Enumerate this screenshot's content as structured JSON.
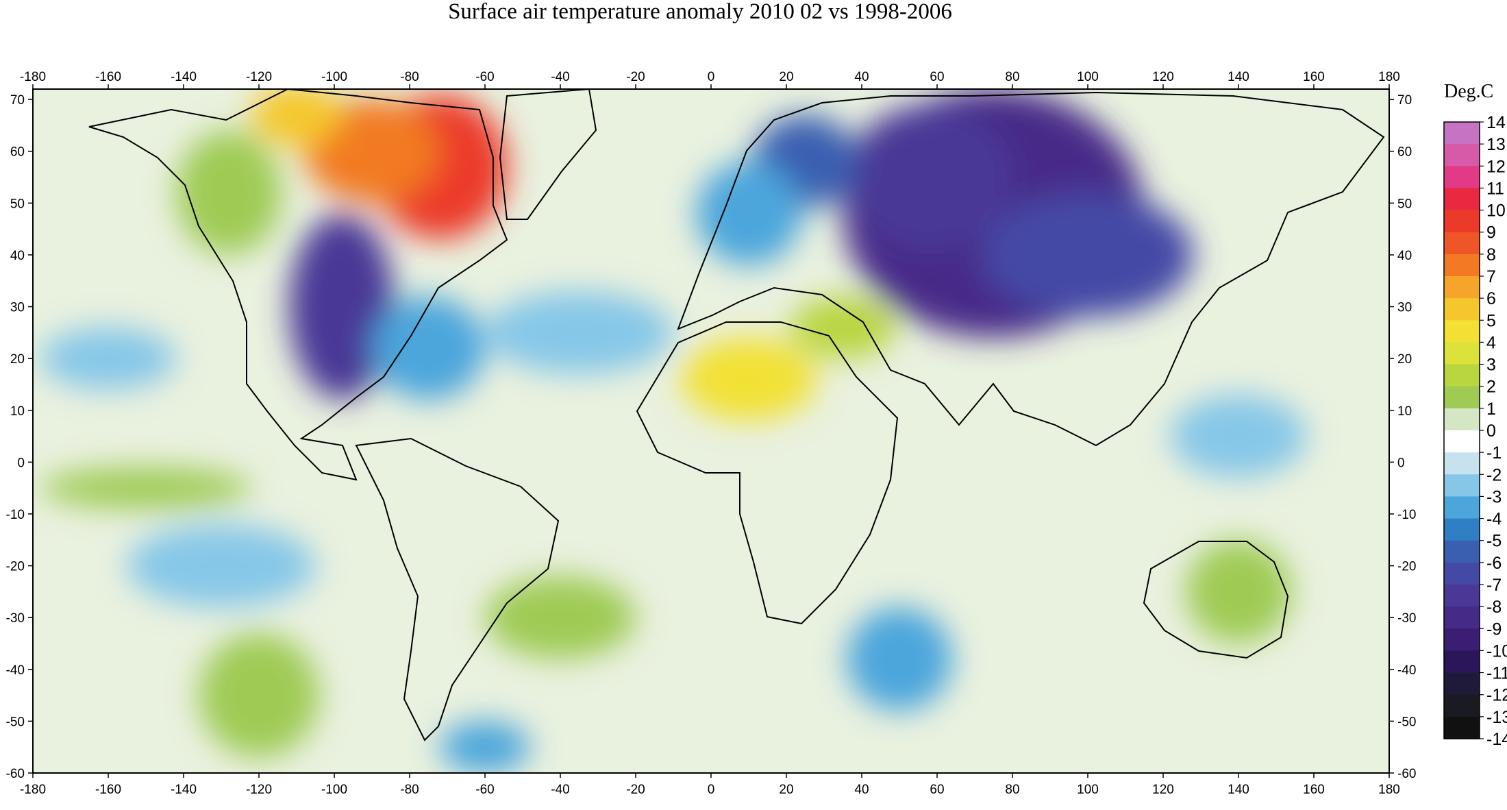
{
  "title": "Surface air temperature anomaly 2010 02 vs 1998-2006",
  "colorbar": {
    "title": "Deg.C",
    "labels": [
      "14",
      "13",
      "12",
      "11",
      "10",
      "9",
      "8",
      "7",
      "6",
      "5",
      "4",
      "3",
      "2",
      "1",
      "0",
      "-1",
      "-2",
      "-3",
      "-4",
      "-5",
      "-6",
      "-7",
      "-8",
      "-9",
      "-10",
      "-11",
      "-12",
      "-13",
      "-14"
    ],
    "colors": [
      "#c773c4",
      "#d65aa8",
      "#e23a86",
      "#e8293f",
      "#ec3a2a",
      "#ef5526",
      "#f27a24",
      "#f7a42a",
      "#f5c72c",
      "#f2e134",
      "#dde23a",
      "#b9d53f",
      "#9fcb55",
      "#d4e6c4",
      "#ffffff",
      "#c7e2ef",
      "#86c7e8",
      "#4ca6dc",
      "#2f7fc4",
      "#3a5fb1",
      "#4549a6",
      "#4a3796",
      "#462a88",
      "#3b1d73",
      "#2a1659",
      "#201a3a",
      "#1a1a22",
      "#111111"
    ]
  },
  "map": {
    "top_axis_labels": [
      "-180",
      "-160",
      "-140",
      "-120",
      "-100",
      "-80",
      "-60",
      "-40",
      "-20",
      "0",
      "20",
      "40",
      "60",
      "80",
      "100",
      "120",
      "140",
      "160",
      "180"
    ],
    "bottom_axis_labels": [
      "-180",
      "-160",
      "-140",
      "-120",
      "-100",
      "-80",
      "-60",
      "-40",
      "-20",
      "0",
      "20",
      "40",
      "60",
      "80",
      "100",
      "120",
      "140",
      "160",
      "180"
    ],
    "left_axis_labels": [
      "70",
      "60",
      "50",
      "40",
      "30",
      "20",
      "10",
      "0",
      "-10",
      "-20",
      "-30",
      "-40",
      "-50",
      "-60"
    ],
    "right_axis_labels": [
      "70",
      "60",
      "50",
      "40",
      "30",
      "20",
      "10",
      "0",
      "-10",
      "-20",
      "-30",
      "-40",
      "-50",
      "-60"
    ],
    "lon_range": [
      -180,
      180
    ],
    "lat_range": [
      -60,
      72
    ],
    "blobs": [
      {
        "lon": 85,
        "lat": 48,
        "rx": 28,
        "ry": 18,
        "color": "#3b1d73"
      },
      {
        "lon": 75,
        "lat": 48,
        "rx": 40,
        "ry": 24,
        "color": "#462a88"
      },
      {
        "lon": 58,
        "lat": 55,
        "rx": 22,
        "ry": 14,
        "color": "#4a3796"
      },
      {
        "lon": 100,
        "lat": 40,
        "rx": 28,
        "ry": 12,
        "color": "#4549a6"
      },
      {
        "lon": 25,
        "lat": 58,
        "rx": 14,
        "ry": 9,
        "color": "#3a5fb1"
      },
      {
        "lon": 10,
        "lat": 48,
        "rx": 14,
        "ry": 10,
        "color": "#4ca6dc"
      },
      {
        "lon": -98,
        "lat": 30,
        "rx": 14,
        "ry": 18,
        "color": "#4a3796"
      },
      {
        "lon": -75,
        "lat": 22,
        "rx": 15,
        "ry": 10,
        "color": "#4ca6dc"
      },
      {
        "lon": -35,
        "lat": 25,
        "rx": 25,
        "ry": 8,
        "color": "#86c7e8"
      },
      {
        "lon": -72,
        "lat": 57,
        "rx": 18,
        "ry": 14,
        "color": "#ec3a2a"
      },
      {
        "lon": -90,
        "lat": 60,
        "rx": 18,
        "ry": 10,
        "color": "#f27a24"
      },
      {
        "lon": -110,
        "lat": 67,
        "rx": 12,
        "ry": 6,
        "color": "#f5c72c"
      },
      {
        "lon": -128,
        "lat": 52,
        "rx": 14,
        "ry": 12,
        "color": "#9fcb55"
      },
      {
        "lon": 10,
        "lat": 16,
        "rx": 18,
        "ry": 8,
        "color": "#f2e134"
      },
      {
        "lon": 35,
        "lat": 26,
        "rx": 14,
        "ry": 6,
        "color": "#b9d53f"
      },
      {
        "lon": 50,
        "lat": -38,
        "rx": 14,
        "ry": 10,
        "color": "#4ca6dc"
      },
      {
        "lon": -130,
        "lat": -20,
        "rx": 25,
        "ry": 8,
        "color": "#86c7e8"
      },
      {
        "lon": -120,
        "lat": -45,
        "rx": 16,
        "ry": 12,
        "color": "#9fcb55"
      },
      {
        "lon": -40,
        "lat": -30,
        "rx": 20,
        "ry": 8,
        "color": "#9fcb55"
      },
      {
        "lon": 140,
        "lat": -25,
        "rx": 14,
        "ry": 10,
        "color": "#9fcb55"
      },
      {
        "lon": 140,
        "lat": 5,
        "rx": 18,
        "ry": 8,
        "color": "#86c7e8"
      },
      {
        "lon": -160,
        "lat": 20,
        "rx": 18,
        "ry": 6,
        "color": "#86c7e8"
      },
      {
        "lon": -150,
        "lat": -5,
        "rx": 28,
        "ry": 4,
        "color": "#9fcb55"
      },
      {
        "lon": -60,
        "lat": -55,
        "rx": 12,
        "ry": 5,
        "color": "#4ca6dc"
      }
    ]
  }
}
